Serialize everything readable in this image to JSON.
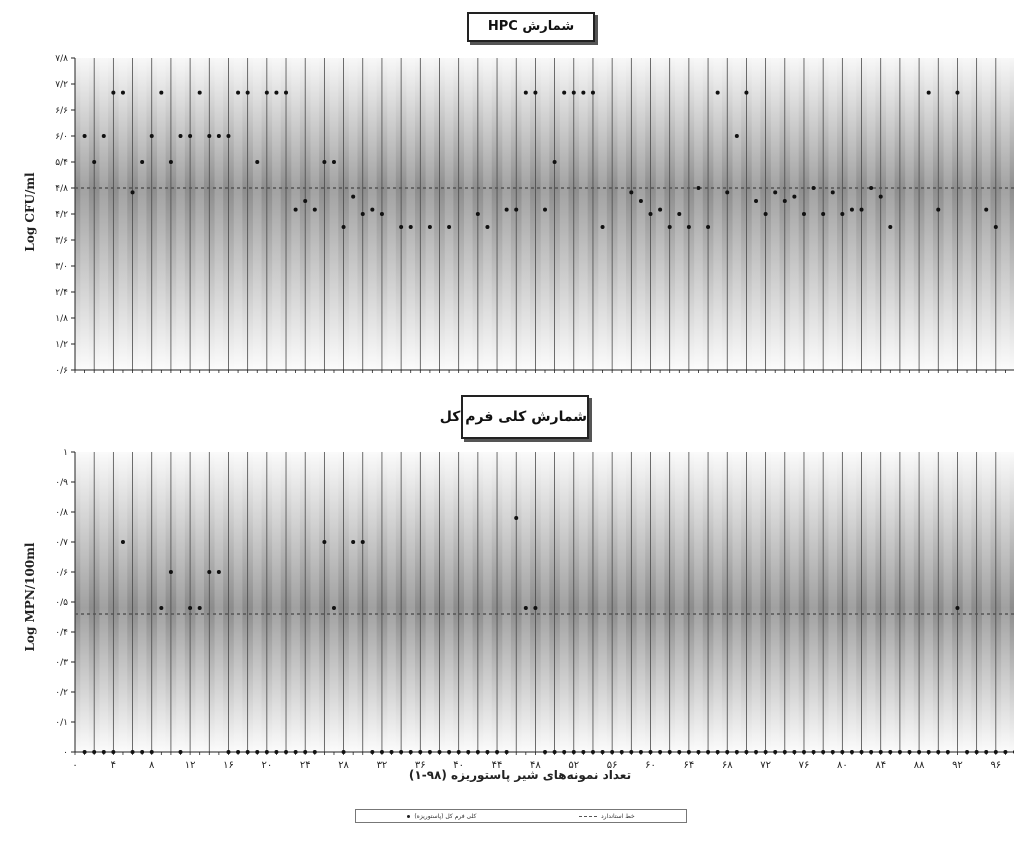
{
  "chart_data": [
    {
      "type": "scatter",
      "title": "شمارش HPC",
      "ylabel": "Log CFU/ml",
      "xlabel": "",
      "ylim": [
        0.6,
        7.8
      ],
      "yticks": [
        0.6,
        1.2,
        1.8,
        2.4,
        3.0,
        3.6,
        4.2,
        4.8,
        5.4,
        6.0,
        6.6,
        7.2,
        7.8
      ],
      "ytick_labels": [
        "۰/۶",
        "۱/۲",
        "۱/۸",
        "۲/۴",
        "۳/۰",
        "۳/۶",
        "۴/۲",
        "۴/۸",
        "۵/۴",
        "۶/۰",
        "۶/۶",
        "۷/۲",
        "۷/۸"
      ],
      "xlim": [
        0,
        98
      ],
      "grid": true,
      "standard_line": 4.8,
      "series": [
        {
          "values": [
            6.0,
            5.4,
            6.0,
            7.0,
            7.0,
            4.7,
            5.4,
            6.0,
            7.0,
            5.4,
            6.0,
            6.0,
            7.0,
            6.0,
            6.0,
            6.0,
            7.0,
            7.0,
            5.4,
            7.0,
            7.0,
            7.0,
            4.3,
            4.5,
            4.3,
            5.4,
            5.4,
            3.9,
            4.6,
            4.2,
            4.3,
            4.2,
            null,
            3.9,
            3.9,
            null,
            3.9,
            null,
            3.9,
            null,
            null,
            4.2,
            3.9,
            null,
            4.3,
            4.3,
            7.0,
            7.0,
            4.3,
            5.4,
            7.0,
            7.0,
            7.0,
            7.0,
            3.9,
            null,
            null,
            4.7,
            4.5,
            4.2,
            4.3,
            3.9,
            4.2,
            3.9,
            4.8,
            3.9,
            7.0,
            4.7,
            6.0,
            7.0,
            4.5,
            4.2,
            4.7,
            4.5,
            4.6,
            4.2,
            4.8,
            4.2,
            4.7,
            4.2,
            4.3,
            4.3,
            4.8,
            4.6,
            3.9,
            null,
            null,
            null,
            7.0,
            4.3,
            null,
            7.0,
            null,
            null,
            4.3,
            3.9,
            null,
            null
          ]
        }
      ]
    },
    {
      "type": "scatter",
      "title": "شمارش کلی فرم کل",
      "ylabel": "Log MPN/100ml",
      "xlabel": "تعداد نمونه‌های شیر پاستوریزه (۹۸-۱)",
      "ylim": [
        0,
        1
      ],
      "yticks": [
        0,
        0.1,
        0.2,
        0.3,
        0.4,
        0.5,
        0.6,
        0.7,
        0.8,
        0.9,
        1
      ],
      "ytick_labels": [
        "۰",
        "۰/۱",
        "۰/۲",
        "۰/۳",
        "۰/۴",
        "۰/۵",
        "۰/۶",
        "۰/۷",
        "۰/۸",
        "۰/۹",
        "۱"
      ],
      "xlim": [
        0,
        98
      ],
      "xticks": [
        0,
        4,
        8,
        12,
        16,
        20,
        24,
        28,
        32,
        36,
        40,
        44,
        48,
        52,
        56,
        60,
        64,
        68,
        72,
        76,
        80,
        84,
        88,
        92,
        96
      ],
      "xtick_labels": [
        "۰",
        "۴",
        "۸",
        "۱۲",
        "۱۶",
        "۲۰",
        "۲۴",
        "۲۸",
        "۳۲",
        "۳۶",
        "۴۰",
        "۴۴",
        "۴۸",
        "۵۲",
        "۵۶",
        "۶۰",
        "۶۴",
        "۶۸",
        "۷۲",
        "۷۶",
        "۸۰",
        "۸۴",
        "۸۸",
        "۹۲",
        "۹۶"
      ],
      "grid": true,
      "standard_line": 0.46,
      "series": [
        {
          "name": "کلی فرم کل (پاستوریزه)",
          "values": [
            0,
            0,
            0,
            0,
            0.7,
            0,
            0,
            0,
            0.48,
            0.6,
            0,
            0.48,
            0.48,
            0.6,
            0.6,
            0,
            0,
            0,
            0,
            0,
            0,
            0,
            0,
            0,
            0,
            0.7,
            0.48,
            0,
            0.7,
            0.7,
            0,
            0,
            0,
            0,
            0,
            0,
            0,
            0,
            0,
            0,
            0,
            0,
            0,
            0,
            0,
            0.78,
            0.48,
            0.48,
            0,
            0,
            0,
            0,
            0,
            0,
            0,
            0,
            0,
            0,
            0,
            0,
            0,
            0,
            0,
            0,
            0,
            0,
            0,
            0,
            0,
            0,
            0,
            0,
            0,
            0,
            0,
            0,
            0,
            0,
            0,
            0,
            0,
            0,
            0,
            0,
            0,
            0,
            0,
            0,
            0,
            0,
            0,
            0.48,
            0,
            0,
            0,
            0,
            0,
            0
          ]
        }
      ]
    }
  ],
  "legend": {
    "standard_label": "خط استاندارد",
    "series_label": "کلی فرم کل (پاستوریزه)"
  }
}
